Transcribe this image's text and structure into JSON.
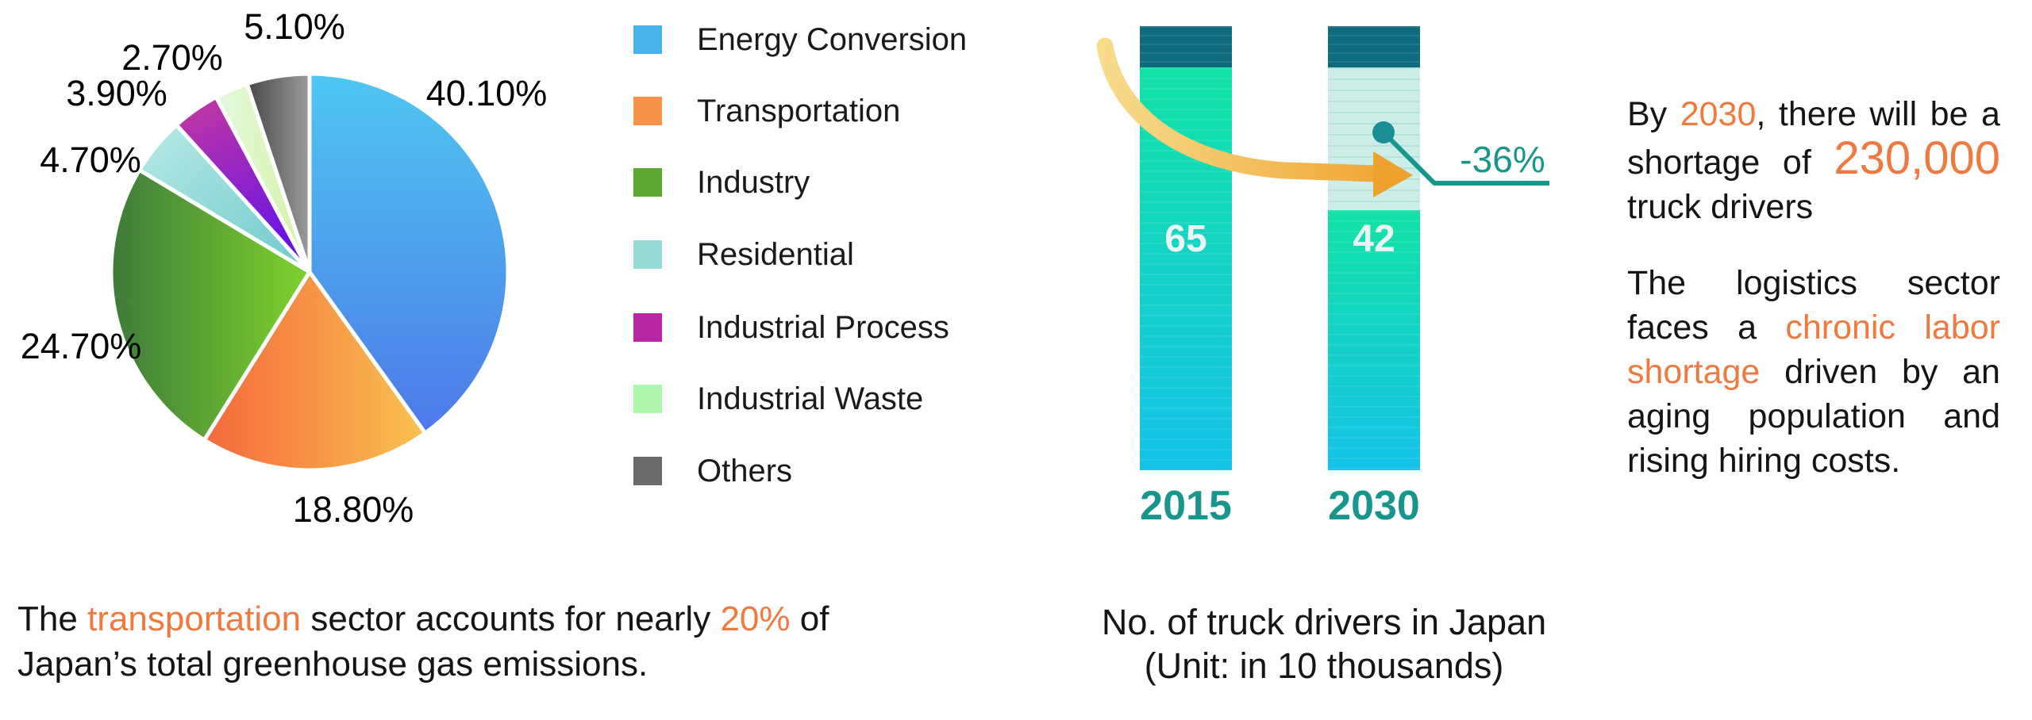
{
  "colors": {
    "orange_accent": "#f0793f",
    "teal_accent": "#18968e",
    "dot_teal": "#1b8d94",
    "arrow_orange": "#efa12d",
    "arrow_yellow": "#f7dc8c",
    "bar_cap": "#0e6b7e",
    "bar_gradient_top": "#12e2a5",
    "bar_gradient_bottom": "#14c3e8",
    "bar_missing": "#cdeee8",
    "text_dark": "#161616"
  },
  "chart_data": [
    {
      "type": "pie",
      "labels": [
        "Energy Conversion",
        "Transportation",
        "Industry",
        "Residential",
        "Industrial Process",
        "Industrial Waste",
        "Others"
      ],
      "values": [
        40.1,
        18.8,
        24.7,
        4.7,
        3.9,
        2.7,
        5.1
      ],
      "value_labels": [
        "40.10%",
        "18.80%",
        "24.70%",
        "4.70%",
        "3.90%",
        "2.70%",
        "5.10%"
      ],
      "colors": [
        "#49b3ef",
        "#f9924a",
        "#5ca930",
        "#98dcd8",
        "#b827a3",
        "#aff6ae",
        "#6b6b6b"
      ],
      "gradients": [
        [
          "#4fc7f0",
          "#4e79e9"
        ],
        [
          "#f4683c",
          "#f8c350"
        ],
        [
          "#3e7a3b",
          "#7ed32c"
        ],
        [
          "#b7eae6",
          "#6fc9cb"
        ],
        [
          "#c5399f",
          "#6a14e4"
        ],
        [
          "#e4f9df",
          "#d5f3a3"
        ],
        [
          "#474747",
          "#9c9c9c"
        ]
      ],
      "start_angle": "top",
      "direction": "clockwise",
      "legend_position": "right",
      "title": ""
    },
    {
      "type": "bar",
      "categories": [
        "2015",
        "2030"
      ],
      "values": [
        65,
        42
      ],
      "annotation": "-36%",
      "title": "No. of truck drivers in Japan",
      "subtitle": "(Unit: in 10 thousands)",
      "ylim": [
        0,
        65
      ]
    }
  ],
  "pie_caption_lines": [
    {
      "justify": false,
      "words": [
        [
          {
            "t": "The",
            "hl": false
          }
        ],
        [
          {
            "t": "transportation",
            "hl": true
          }
        ],
        [
          {
            "t": "sector",
            "hl": false
          }
        ],
        [
          {
            "t": "accounts",
            "hl": false
          }
        ],
        [
          {
            "t": "for",
            "hl": false
          }
        ],
        [
          {
            "t": "nearly",
            "hl": false
          }
        ],
        [
          {
            "t": "20%",
            "hl": true
          }
        ],
        [
          {
            "t": "of",
            "hl": false
          }
        ]
      ]
    },
    {
      "justify": false,
      "words": [
        [
          {
            "t": "Japan’s",
            "hl": false
          }
        ],
        [
          {
            "t": "total",
            "hl": false
          }
        ],
        [
          {
            "t": "greenhouse",
            "hl": false
          }
        ],
        [
          {
            "t": "gas",
            "hl": false
          }
        ],
        [
          {
            "t": "emissions.",
            "hl": false
          }
        ]
      ]
    }
  ],
  "right_panel": {
    "para1_lines": [
      {
        "justify": true,
        "words": [
          [
            {
              "t": "By",
              "hl": false
            }
          ],
          [
            {
              "t": "2030",
              "hl": true
            },
            {
              "t": ",",
              "hl": false
            }
          ],
          [
            {
              "t": "there",
              "hl": false
            }
          ],
          [
            {
              "t": "will",
              "hl": false
            }
          ],
          [
            {
              "t": "be",
              "hl": false
            }
          ],
          [
            {
              "t": "a",
              "hl": false
            }
          ]
        ]
      },
      {
        "justify": true,
        "words": [
          [
            {
              "t": "shortage",
              "hl": false
            }
          ],
          [
            {
              "t": "of",
              "hl": false
            }
          ],
          [
            {
              "t": "230,000",
              "hl": true,
              "big": true
            }
          ]
        ]
      },
      {
        "justify": false,
        "words": [
          [
            {
              "t": "truck",
              "hl": false
            }
          ],
          [
            {
              "t": "drivers",
              "hl": false
            }
          ]
        ]
      }
    ],
    "para2_lines": [
      {
        "justify": true,
        "words": [
          [
            {
              "t": "The",
              "hl": false
            }
          ],
          [
            {
              "t": "logistics",
              "hl": false
            }
          ],
          [
            {
              "t": "sector",
              "hl": false
            }
          ]
        ]
      },
      {
        "justify": true,
        "words": [
          [
            {
              "t": "faces",
              "hl": false
            }
          ],
          [
            {
              "t": "a",
              "hl": false
            }
          ],
          [
            {
              "t": "chronic",
              "hl": true
            }
          ],
          [
            {
              "t": "labor",
              "hl": true
            }
          ]
        ]
      },
      {
        "justify": true,
        "words": [
          [
            {
              "t": "shortage",
              "hl": true
            }
          ],
          [
            {
              "t": "driven",
              "hl": false
            }
          ],
          [
            {
              "t": "by",
              "hl": false
            }
          ],
          [
            {
              "t": "an",
              "hl": false
            }
          ]
        ]
      },
      {
        "justify": true,
        "words": [
          [
            {
              "t": "aging",
              "hl": false
            }
          ],
          [
            {
              "t": "population",
              "hl": false
            }
          ],
          [
            {
              "t": "and",
              "hl": false
            }
          ]
        ]
      },
      {
        "justify": false,
        "words": [
          [
            {
              "t": "rising",
              "hl": false
            }
          ],
          [
            {
              "t": "hiring",
              "hl": false
            }
          ],
          [
            {
              "t": "costs.",
              "hl": false
            }
          ]
        ]
      }
    ]
  }
}
